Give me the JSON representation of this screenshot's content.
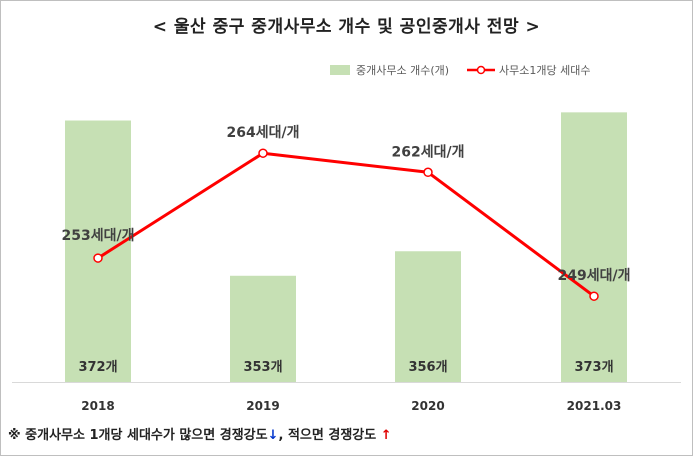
{
  "title": "< 울산 중구 중개사무소 개수 및 공인중개사 전망 >",
  "legend": {
    "bar_label": "중개사무소 개수(개)",
    "line_label": "사무소1개당 세대수"
  },
  "footnote": {
    "text_before": "※ 중개사무소 1개당 세대수가 많으면 경쟁강도",
    "arrow_down": "↓",
    "text_middle": ", 적으면 경쟁강도 ",
    "arrow_up": "↑"
  },
  "chart_data": {
    "type": "bar+line",
    "categories": [
      "2018",
      "2019",
      "2020",
      "2021.03"
    ],
    "series": [
      {
        "name": "중개사무소 개수(개)",
        "type": "bar",
        "values": [
          372,
          353,
          356,
          373
        ],
        "labels": [
          "372개",
          "353개",
          "356개",
          "373개"
        ],
        "color": "#c6e0b4"
      },
      {
        "name": "사무소1개당 세대수",
        "type": "line",
        "values": [
          253,
          264,
          262,
          249
        ],
        "labels": [
          "253세대/개",
          "264세대/개",
          "262세대/개",
          "249세대/개"
        ],
        "color": "#ff0000"
      }
    ],
    "bar_axis_range": [
      340,
      375
    ],
    "line_axis_range": [
      240,
      270
    ],
    "grid": false,
    "legend_position": "top-right"
  }
}
